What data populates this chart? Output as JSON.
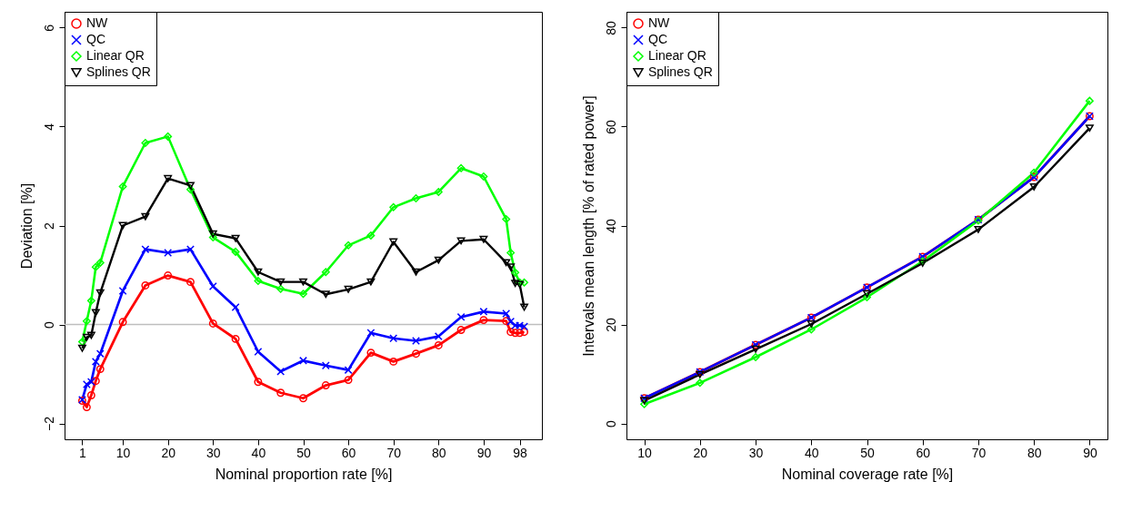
{
  "chart_data": [
    {
      "type": "line",
      "xlabel": "Nominal proportion rate [%]",
      "ylabel": "Deviation [%]",
      "x": [
        1,
        2,
        3,
        4,
        5,
        10,
        15,
        20,
        25,
        30,
        35,
        40,
        45,
        50,
        55,
        60,
        65,
        70,
        75,
        80,
        85,
        90,
        95,
        96,
        97,
        98,
        99
      ],
      "xlim": [
        -2.92,
        102.92
      ],
      "xticks": [
        1,
        10,
        20,
        30,
        40,
        50,
        60,
        70,
        80,
        90,
        98
      ],
      "ylim": [
        -2.32,
        6.32
      ],
      "yticks": [
        -2,
        0,
        2,
        4,
        6
      ],
      "grid": false,
      "legend": "top left",
      "line_style": "solid",
      "ref_lines": [
        {
          "axis": "y",
          "value": 0,
          "color": "#bebebe"
        }
      ],
      "series": [
        {
          "name": "NW",
          "color": "#ff0000",
          "marker": "circle",
          "values": [
            -1.54,
            -1.67,
            -1.43,
            -1.14,
            -0.9,
            0.05,
            0.79,
            0.99,
            0.86,
            0.02,
            -0.29,
            -1.16,
            -1.38,
            -1.49,
            -1.23,
            -1.12,
            -0.57,
            -0.75,
            -0.59,
            -0.42,
            -0.11,
            0.09,
            0.07,
            -0.15,
            -0.17,
            -0.17,
            -0.15
          ]
        },
        {
          "name": "QC",
          "color": "#0000ff",
          "marker": "cross",
          "values": [
            -1.52,
            -1.21,
            -1.16,
            -0.75,
            -0.59,
            0.68,
            1.52,
            1.45,
            1.52,
            0.77,
            0.35,
            -0.55,
            -0.95,
            -0.73,
            -0.83,
            -0.92,
            -0.17,
            -0.28,
            -0.33,
            -0.24,
            0.15,
            0.26,
            0.22,
            0.06,
            -0.02,
            -0.02,
            -0.04
          ]
        },
        {
          "name": "Linear QR",
          "color": "#00ff00",
          "marker": "diamond",
          "values": [
            -0.35,
            0.07,
            0.48,
            1.16,
            1.25,
            2.79,
            3.67,
            3.8,
            2.73,
            1.76,
            1.47,
            0.88,
            0.72,
            0.62,
            1.06,
            1.6,
            1.8,
            2.37,
            2.55,
            2.68,
            3.16,
            2.99,
            2.13,
            1.45,
            1.05,
            0.85,
            0.85
          ]
        },
        {
          "name": "Splines QR",
          "color": "#000000",
          "marker": "triangle-down",
          "values": [
            -0.48,
            -0.26,
            -0.22,
            0.24,
            0.64,
            2.0,
            2.18,
            2.95,
            2.81,
            1.83,
            1.74,
            1.06,
            0.86,
            0.86,
            0.61,
            0.71,
            0.86,
            1.67,
            1.06,
            1.3,
            1.69,
            1.72,
            1.25,
            1.16,
            0.83,
            0.81,
            0.35
          ]
        }
      ]
    },
    {
      "type": "line",
      "xlabel": "Nominal coverage rate [%]",
      "ylabel": "Intervals mean length [% of rated power]",
      "x": [
        10,
        20,
        30,
        40,
        50,
        60,
        70,
        80,
        90
      ],
      "xlim": [
        6.8,
        93.2
      ],
      "xticks": [
        10,
        20,
        30,
        40,
        50,
        60,
        70,
        80,
        90
      ],
      "ylim": [
        -3.2,
        83.2
      ],
      "yticks": [
        0,
        20,
        40,
        60,
        80
      ],
      "grid": false,
      "legend": "top left",
      "line_style": "solid",
      "series": [
        {
          "name": "NW",
          "color": "#ff0000",
          "marker": "circle",
          "values": [
            5.1,
            10.4,
            15.9,
            21.4,
            27.5,
            33.7,
            41.2,
            49.8,
            62.1
          ]
        },
        {
          "name": "QC",
          "color": "#0000ff",
          "marker": "cross",
          "values": [
            5.1,
            10.4,
            15.9,
            21.4,
            27.5,
            33.7,
            41.2,
            49.8,
            62.1
          ]
        },
        {
          "name": "Linear QR",
          "color": "#00ff00",
          "marker": "diamond",
          "values": [
            3.9,
            8.2,
            13.4,
            19.0,
            25.5,
            32.8,
            41.0,
            50.7,
            65.2
          ]
        },
        {
          "name": "Splines QR",
          "color": "#000000",
          "marker": "triangle-down",
          "values": [
            4.6,
            9.9,
            15.0,
            20.1,
            26.2,
            32.4,
            39.2,
            47.8,
            59.7
          ]
        }
      ]
    }
  ]
}
